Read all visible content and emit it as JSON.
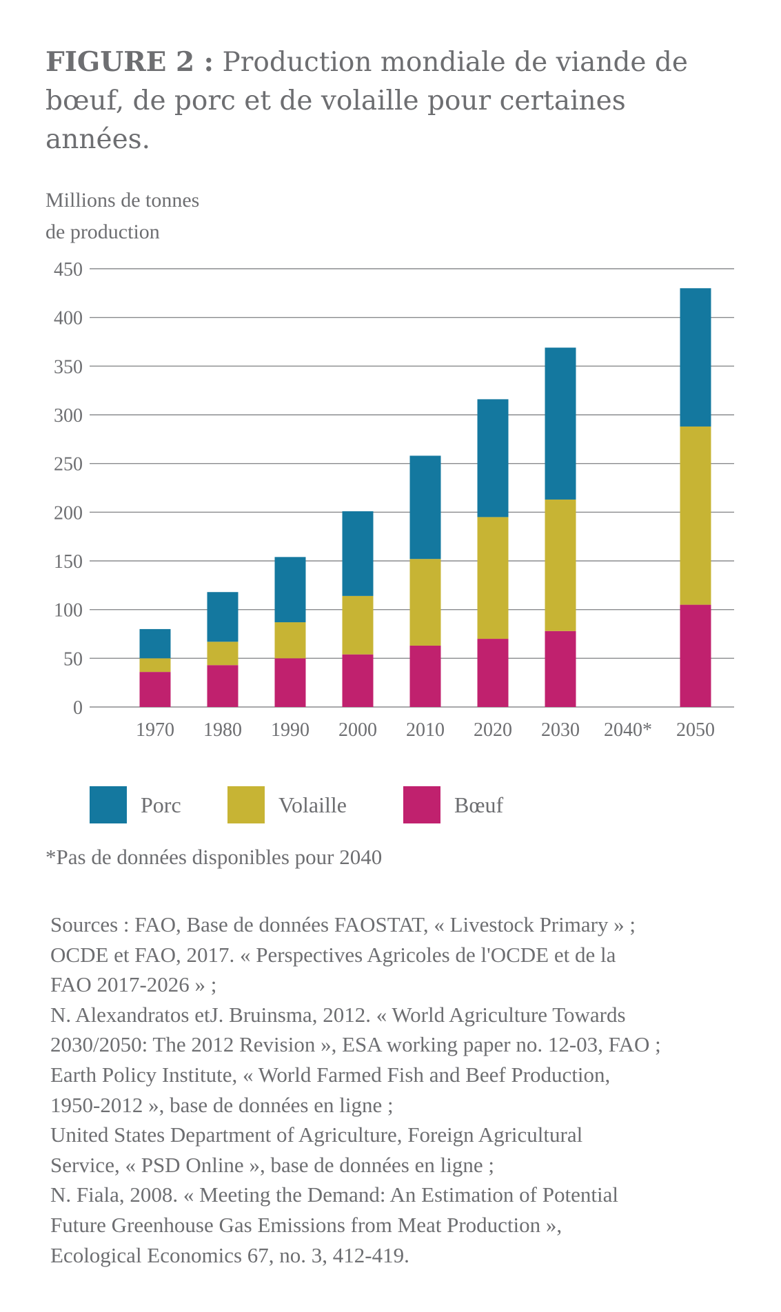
{
  "title": {
    "figure_label": "FIGURE 2 :",
    "text": "Production mondiale de viande de bœuf, de porc et de volaille pour certaines années."
  },
  "ylabel_lines": [
    "Millions de tonnes",
    "de production"
  ],
  "footnote": "*Pas de données disponibles pour 2040",
  "sources_lines": [
    "Sources : FAO, Base de données FAOSTAT, « Livestock Primary » ;",
    "OCDE et FAO, 2017. « Perspectives Agricoles de l'OCDE et de la",
    "FAO 2017-2026 » ;",
    "N. Alexandratos etJ. Bruinsma, 2012. « World Agriculture Towards",
    "2030/2050: The 2012 Revision », ESA working paper no. 12-03, FAO ;",
    "Earth Policy Institute, « World Farmed Fish and Beef Production,",
    "1950-2012 », base de données en ligne ;",
    "United States Department of Agriculture, Foreign Agricultural",
    "Service, « PSD Online », base de données en ligne ;",
    "N. Fiala, 2008. « Meeting the Demand: An Estimation of Potential",
    "Future Greenhouse Gas Emissions from Meat Production »,",
    "Ecological Economics 67, no. 3, 412-419."
  ],
  "colors": {
    "Porc": "#14789f",
    "Volaille": "#c7b434",
    "Bœuf": "#c0216e",
    "grid": "#8a8b8d",
    "text": "#6d6e71"
  },
  "legend": [
    "Porc",
    "Volaille",
    "Bœuf"
  ],
  "chart_data": {
    "type": "bar",
    "stacked": true,
    "categories": [
      "1970",
      "1980",
      "1990",
      "2000",
      "2010",
      "2020",
      "2030",
      "2040*",
      "2050"
    ],
    "series": [
      {
        "name": "Bœuf",
        "values": [
          36,
          43,
          50,
          54,
          63,
          70,
          78,
          null,
          105
        ]
      },
      {
        "name": "Volaille",
        "values": [
          14,
          24,
          37,
          60,
          89,
          125,
          135,
          null,
          183
        ]
      },
      {
        "name": "Porc",
        "values": [
          30,
          51,
          67,
          87,
          106,
          121,
          156,
          null,
          142
        ]
      }
    ],
    "ylim": [
      0,
      450
    ],
    "yticks": [
      0,
      50,
      100,
      150,
      200,
      250,
      300,
      350,
      400,
      450
    ],
    "grid": true,
    "legend_position": "bottom-left"
  }
}
